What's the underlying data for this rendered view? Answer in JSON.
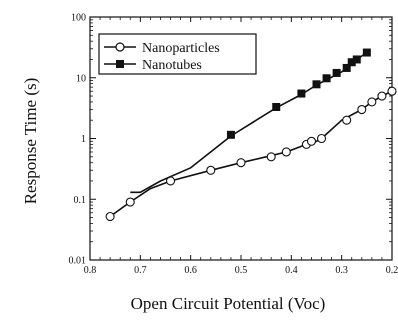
{
  "chart_data": {
    "type": "line",
    "xlabel": "Open Circuit Potential (Voc)",
    "ylabel": "Response Time (s)",
    "x_reversed": true,
    "y_scale": "log",
    "xlim": [
      0.8,
      0.2
    ],
    "ylim": [
      0.01,
      100
    ],
    "x_ticks": [
      0.8,
      0.7,
      0.6,
      0.5,
      0.4,
      0.3,
      0.2
    ],
    "x_tick_labels": [
      "0.8",
      "0.7",
      "0.6",
      "0.5",
      "0.4",
      "0.3",
      "0.2"
    ],
    "y_ticks": [
      0.01,
      0.1,
      1,
      10,
      100
    ],
    "y_tick_labels": [
      "0.01",
      "0.1",
      "1",
      "10",
      "100"
    ],
    "legend_position": "top-left",
    "grid": false,
    "series": [
      {
        "name": "Nanoparticles",
        "marker": "open-circle",
        "color": "#111111",
        "line": [
          [
            0.76,
            0.052
          ],
          [
            0.72,
            0.09
          ],
          [
            0.68,
            0.15
          ],
          [
            0.64,
            0.2
          ],
          [
            0.56,
            0.3
          ],
          [
            0.5,
            0.4
          ],
          [
            0.45,
            0.5
          ],
          [
            0.41,
            0.6
          ],
          [
            0.37,
            0.8
          ],
          [
            0.35,
            0.9
          ],
          [
            0.34,
            1.0
          ],
          [
            0.3,
            2.0
          ],
          [
            0.26,
            3.0
          ],
          [
            0.24,
            4.0
          ],
          [
            0.22,
            5.0
          ],
          [
            0.2,
            6.0
          ]
        ],
        "points": [
          [
            0.76,
            0.052
          ],
          [
            0.72,
            0.09
          ],
          [
            0.64,
            0.2
          ],
          [
            0.56,
            0.3
          ],
          [
            0.5,
            0.4
          ],
          [
            0.44,
            0.5
          ],
          [
            0.41,
            0.6
          ],
          [
            0.37,
            0.8
          ],
          [
            0.36,
            0.9
          ],
          [
            0.34,
            1.0
          ],
          [
            0.29,
            2.0
          ],
          [
            0.26,
            3.0
          ],
          [
            0.24,
            4.0
          ],
          [
            0.22,
            5.0
          ],
          [
            0.2,
            6.0
          ]
        ]
      },
      {
        "name": "Nanotubes",
        "marker": "filled-square",
        "color": "#111111",
        "line": [
          [
            0.72,
            0.13
          ],
          [
            0.7,
            0.13
          ],
          [
            0.66,
            0.2
          ],
          [
            0.6,
            0.33
          ],
          [
            0.52,
            1.1
          ],
          [
            0.43,
            3.2
          ],
          [
            0.38,
            5.3
          ],
          [
            0.35,
            7.6
          ],
          [
            0.3,
            12.5
          ],
          [
            0.27,
            20
          ],
          [
            0.25,
            26
          ]
        ],
        "points": [
          [
            0.52,
            1.15
          ],
          [
            0.43,
            3.3
          ],
          [
            0.38,
            5.5
          ],
          [
            0.35,
            7.8
          ],
          [
            0.33,
            9.8
          ],
          [
            0.31,
            12
          ],
          [
            0.29,
            14.5
          ],
          [
            0.28,
            18
          ],
          [
            0.27,
            20
          ],
          [
            0.25,
            26
          ]
        ]
      }
    ]
  }
}
